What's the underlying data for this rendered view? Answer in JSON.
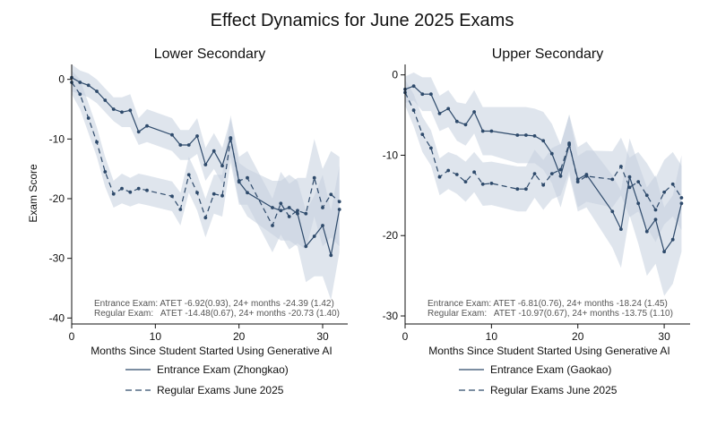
{
  "figure": {
    "title": "Effect Dynamics for June 2025 Exams",
    "ylabel": "Exam Score",
    "colors": {
      "line": "#2e4a6b",
      "band": "#c5d0df",
      "frame": "#111111"
    }
  },
  "chart_data": [
    {
      "type": "line",
      "title": "Lower Secondary",
      "xlabel": "Months Since Student Started Using Generative AI",
      "ylabel": "Exam Score",
      "xlim": [
        0,
        33
      ],
      "ylim": [
        -41,
        2.5
      ],
      "xticks": [
        0,
        10,
        20,
        30
      ],
      "yticks": [
        0,
        -10,
        -20,
        -30,
        -40
      ],
      "grid": false,
      "legend_position": "bottom",
      "annotations": [
        "Entrance Exam: ATET -6.92(0.93), 24+ months -24.39 (1.42)",
        "Regular Exam:   ATET -14.48(0.67), 24+ months -20.73 (1.40)"
      ],
      "series": [
        {
          "name": "Entrance Exam (Zhongkao)",
          "style": "solid",
          "x": [
            0,
            1,
            2,
            3,
            4,
            5,
            6,
            7,
            8,
            9,
            12,
            13,
            14,
            15,
            16,
            17,
            18,
            19,
            20,
            21,
            24,
            25,
            26,
            27,
            28,
            29,
            30,
            31,
            32
          ],
          "y": [
            0.3,
            -0.5,
            -1,
            -2,
            -3.5,
            -5,
            -5.5,
            -5.2,
            -8.8,
            -7.8,
            -9.3,
            -11,
            -11,
            -9.5,
            -14.3,
            -12,
            -14.5,
            -9.8,
            -17.2,
            -19,
            -21.5,
            -22,
            -21.5,
            -22.5,
            -28,
            -26.3,
            -24.5,
            -29.5,
            -21.8
          ],
          "lower": [
            -2,
            -2.5,
            -3,
            -4,
            -5.5,
            -7,
            -8,
            -8,
            -11,
            -10.5,
            -12,
            -13.5,
            -13.5,
            -12.5,
            -17,
            -15,
            -17.5,
            -13,
            -20.5,
            -23,
            -26,
            -27,
            -27,
            -28,
            -34,
            -33,
            -33,
            -37,
            -29
          ],
          "upper": [
            2.5,
            1.5,
            1,
            0,
            -1.5,
            -3,
            -3,
            -2.5,
            -6.5,
            -5,
            -6.5,
            -8.5,
            -8.5,
            -6.5,
            -11.5,
            -9,
            -11.5,
            -6.5,
            -14,
            -15,
            -17,
            -17,
            -16,
            -17,
            -22,
            -19.5,
            -16,
            -22,
            -14.5
          ]
        },
        {
          "name": "Regular Exams June 2025",
          "style": "dashed",
          "x": [
            0,
            1,
            2,
            3,
            4,
            5,
            6,
            7,
            8,
            9,
            12,
            13,
            14,
            15,
            16,
            17,
            18,
            19,
            20,
            21,
            24,
            25,
            26,
            27,
            28,
            29,
            30,
            31,
            32
          ],
          "y": [
            -0.5,
            -2.5,
            -6.5,
            -10.5,
            -15.5,
            -19.2,
            -18.3,
            -18.9,
            -18.3,
            -18.6,
            -19.6,
            -21.8,
            -16,
            -19,
            -23.2,
            -19.2,
            -19.5,
            -10,
            -17,
            -16.5,
            -24.5,
            -20.8,
            -23,
            -22,
            -22.5,
            -16.5,
            -21.5,
            -19.3,
            -20.5
          ],
          "lower": [
            -2.5,
            -5,
            -9,
            -13,
            -18,
            -21.5,
            -20.8,
            -21.3,
            -20.8,
            -21.1,
            -22.1,
            -24.5,
            -19,
            -22,
            -26.5,
            -22.5,
            -23,
            -14,
            -21,
            -21,
            -29,
            -26,
            -28.5,
            -27.5,
            -28.5,
            -23,
            -28,
            -26.5,
            -28
          ],
          "upper": [
            1.5,
            0,
            -4,
            -8,
            -13,
            -17,
            -15.8,
            -16.5,
            -15.8,
            -16.1,
            -17.1,
            -19,
            -13,
            -16,
            -20,
            -16,
            -16,
            -6,
            -13,
            -12,
            -20,
            -15.5,
            -17.5,
            -16.5,
            -16.5,
            -10,
            -15,
            -12,
            -13
          ]
        }
      ]
    },
    {
      "type": "line",
      "title": "Upper Secondary",
      "xlabel": "Months Since Student Started Using Generative AI",
      "ylabel": "",
      "xlim": [
        0,
        33
      ],
      "ylim": [
        -31,
        1.3
      ],
      "xticks": [
        0,
        10,
        20,
        30
      ],
      "yticks": [
        0,
        -10,
        -20,
        -30
      ],
      "grid": false,
      "legend_position": "bottom",
      "annotations": [
        "Entrance Exam: ATET -6.81(0.76), 24+ months -18.24 (1.45)",
        "Regular Exam:   ATET -10.97(0.67), 24+ months -13.75 (1.10)"
      ],
      "series": [
        {
          "name": "Entrance Exam (Gaokao)",
          "style": "solid",
          "x": [
            0,
            1,
            2,
            3,
            4,
            5,
            6,
            7,
            8,
            9,
            10,
            13,
            14,
            15,
            16,
            17,
            18,
            19,
            20,
            21,
            24,
            25,
            26,
            27,
            28,
            29,
            30,
            31,
            32
          ],
          "y": [
            -1.8,
            -1.4,
            -2.4,
            -2.4,
            -4.8,
            -4.2,
            -5.8,
            -6.2,
            -4.6,
            -7,
            -7,
            -7.5,
            -7.5,
            -7.6,
            -8.2,
            -9.8,
            -12.6,
            -8.7,
            -13,
            -12.4,
            -17,
            -19.2,
            -12.7,
            -16,
            -19.5,
            -18,
            -22,
            -20.5,
            -16
          ],
          "lower": [
            -3.5,
            -3.2,
            -4.5,
            -4.5,
            -7,
            -6.5,
            -8.2,
            -8.8,
            -7.3,
            -10,
            -10,
            -11,
            -11,
            -11,
            -11.8,
            -13.5,
            -16.5,
            -12.5,
            -17,
            -16.5,
            -21.5,
            -24,
            -17.5,
            -21,
            -25,
            -23.5,
            -27.5,
            -26,
            -22
          ],
          "upper": [
            -0.2,
            0.3,
            -0.3,
            -0.3,
            -2.6,
            -1.9,
            -3.4,
            -3.6,
            -1.9,
            -4,
            -4,
            -4,
            -4,
            -4.2,
            -4.6,
            -6.1,
            -8.7,
            -4.9,
            -9,
            -8.3,
            -12.5,
            -14.4,
            -7.9,
            -11,
            -14,
            -12.5,
            -16.5,
            -15,
            -10
          ]
        },
        {
          "name": "Regular Exams June 2025",
          "style": "dashed",
          "x": [
            0,
            1,
            2,
            3,
            4,
            5,
            6,
            7,
            8,
            9,
            10,
            13,
            14,
            15,
            16,
            17,
            18,
            19,
            20,
            21,
            24,
            25,
            26,
            27,
            28,
            29,
            30,
            31,
            32
          ],
          "y": [
            -2.2,
            -4.4,
            -7.4,
            -9.1,
            -12.7,
            -11.9,
            -12.4,
            -13.3,
            -12.1,
            -13.6,
            -13.5,
            -14.2,
            -14.2,
            -12.3,
            -13.7,
            -12.3,
            -11.8,
            -8.5,
            -13.3,
            -12.6,
            -13,
            -11.4,
            -14,
            -13.3,
            -15,
            -16.8,
            -14.6,
            -13.6,
            -15.3
          ],
          "lower": [
            -3.8,
            -6.4,
            -9.6,
            -11.3,
            -15,
            -14.2,
            -14.8,
            -15.8,
            -14.6,
            -16.3,
            -16.2,
            -17,
            -17,
            -15.3,
            -16.8,
            -15.5,
            -15,
            -12,
            -16.5,
            -15.8,
            -16.5,
            -15,
            -17.7,
            -17,
            -19,
            -20.8,
            -18.6,
            -17.6,
            -19.3
          ],
          "upper": [
            -0.6,
            -2.4,
            -5.2,
            -6.9,
            -10.4,
            -9.6,
            -10,
            -10.8,
            -9.6,
            -10.9,
            -10.8,
            -11.4,
            -11.4,
            -9.3,
            -10.6,
            -9.1,
            -8.6,
            -5,
            -10.1,
            -9.4,
            -9.5,
            -7.8,
            -10.3,
            -9.6,
            -11,
            -12.8,
            -10.6,
            -9.6,
            -11.3
          ]
        }
      ]
    }
  ]
}
